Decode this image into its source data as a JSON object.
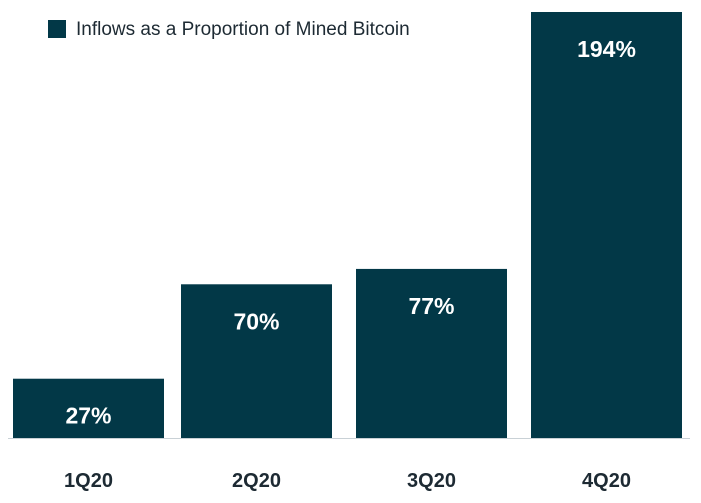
{
  "chart_data": {
    "type": "bar",
    "categories": [
      "1Q20",
      "2Q20",
      "3Q20",
      "4Q20"
    ],
    "series": [
      {
        "name": "Inflows as a Proportion of Mined Bitcoin",
        "values": [
          27,
          70,
          77,
          194
        ],
        "labels": [
          "27%",
          "70%",
          "77%",
          "194%"
        ]
      }
    ],
    "title": "",
    "xlabel": "",
    "ylabel": "",
    "ylim": [
      0,
      200
    ],
    "grid": false,
    "legend_position": "top-left",
    "colors": {
      "bar": "#023847",
      "text": "#1d2a33",
      "label": "#ffffff",
      "baseline": "#c9d1d6"
    }
  }
}
